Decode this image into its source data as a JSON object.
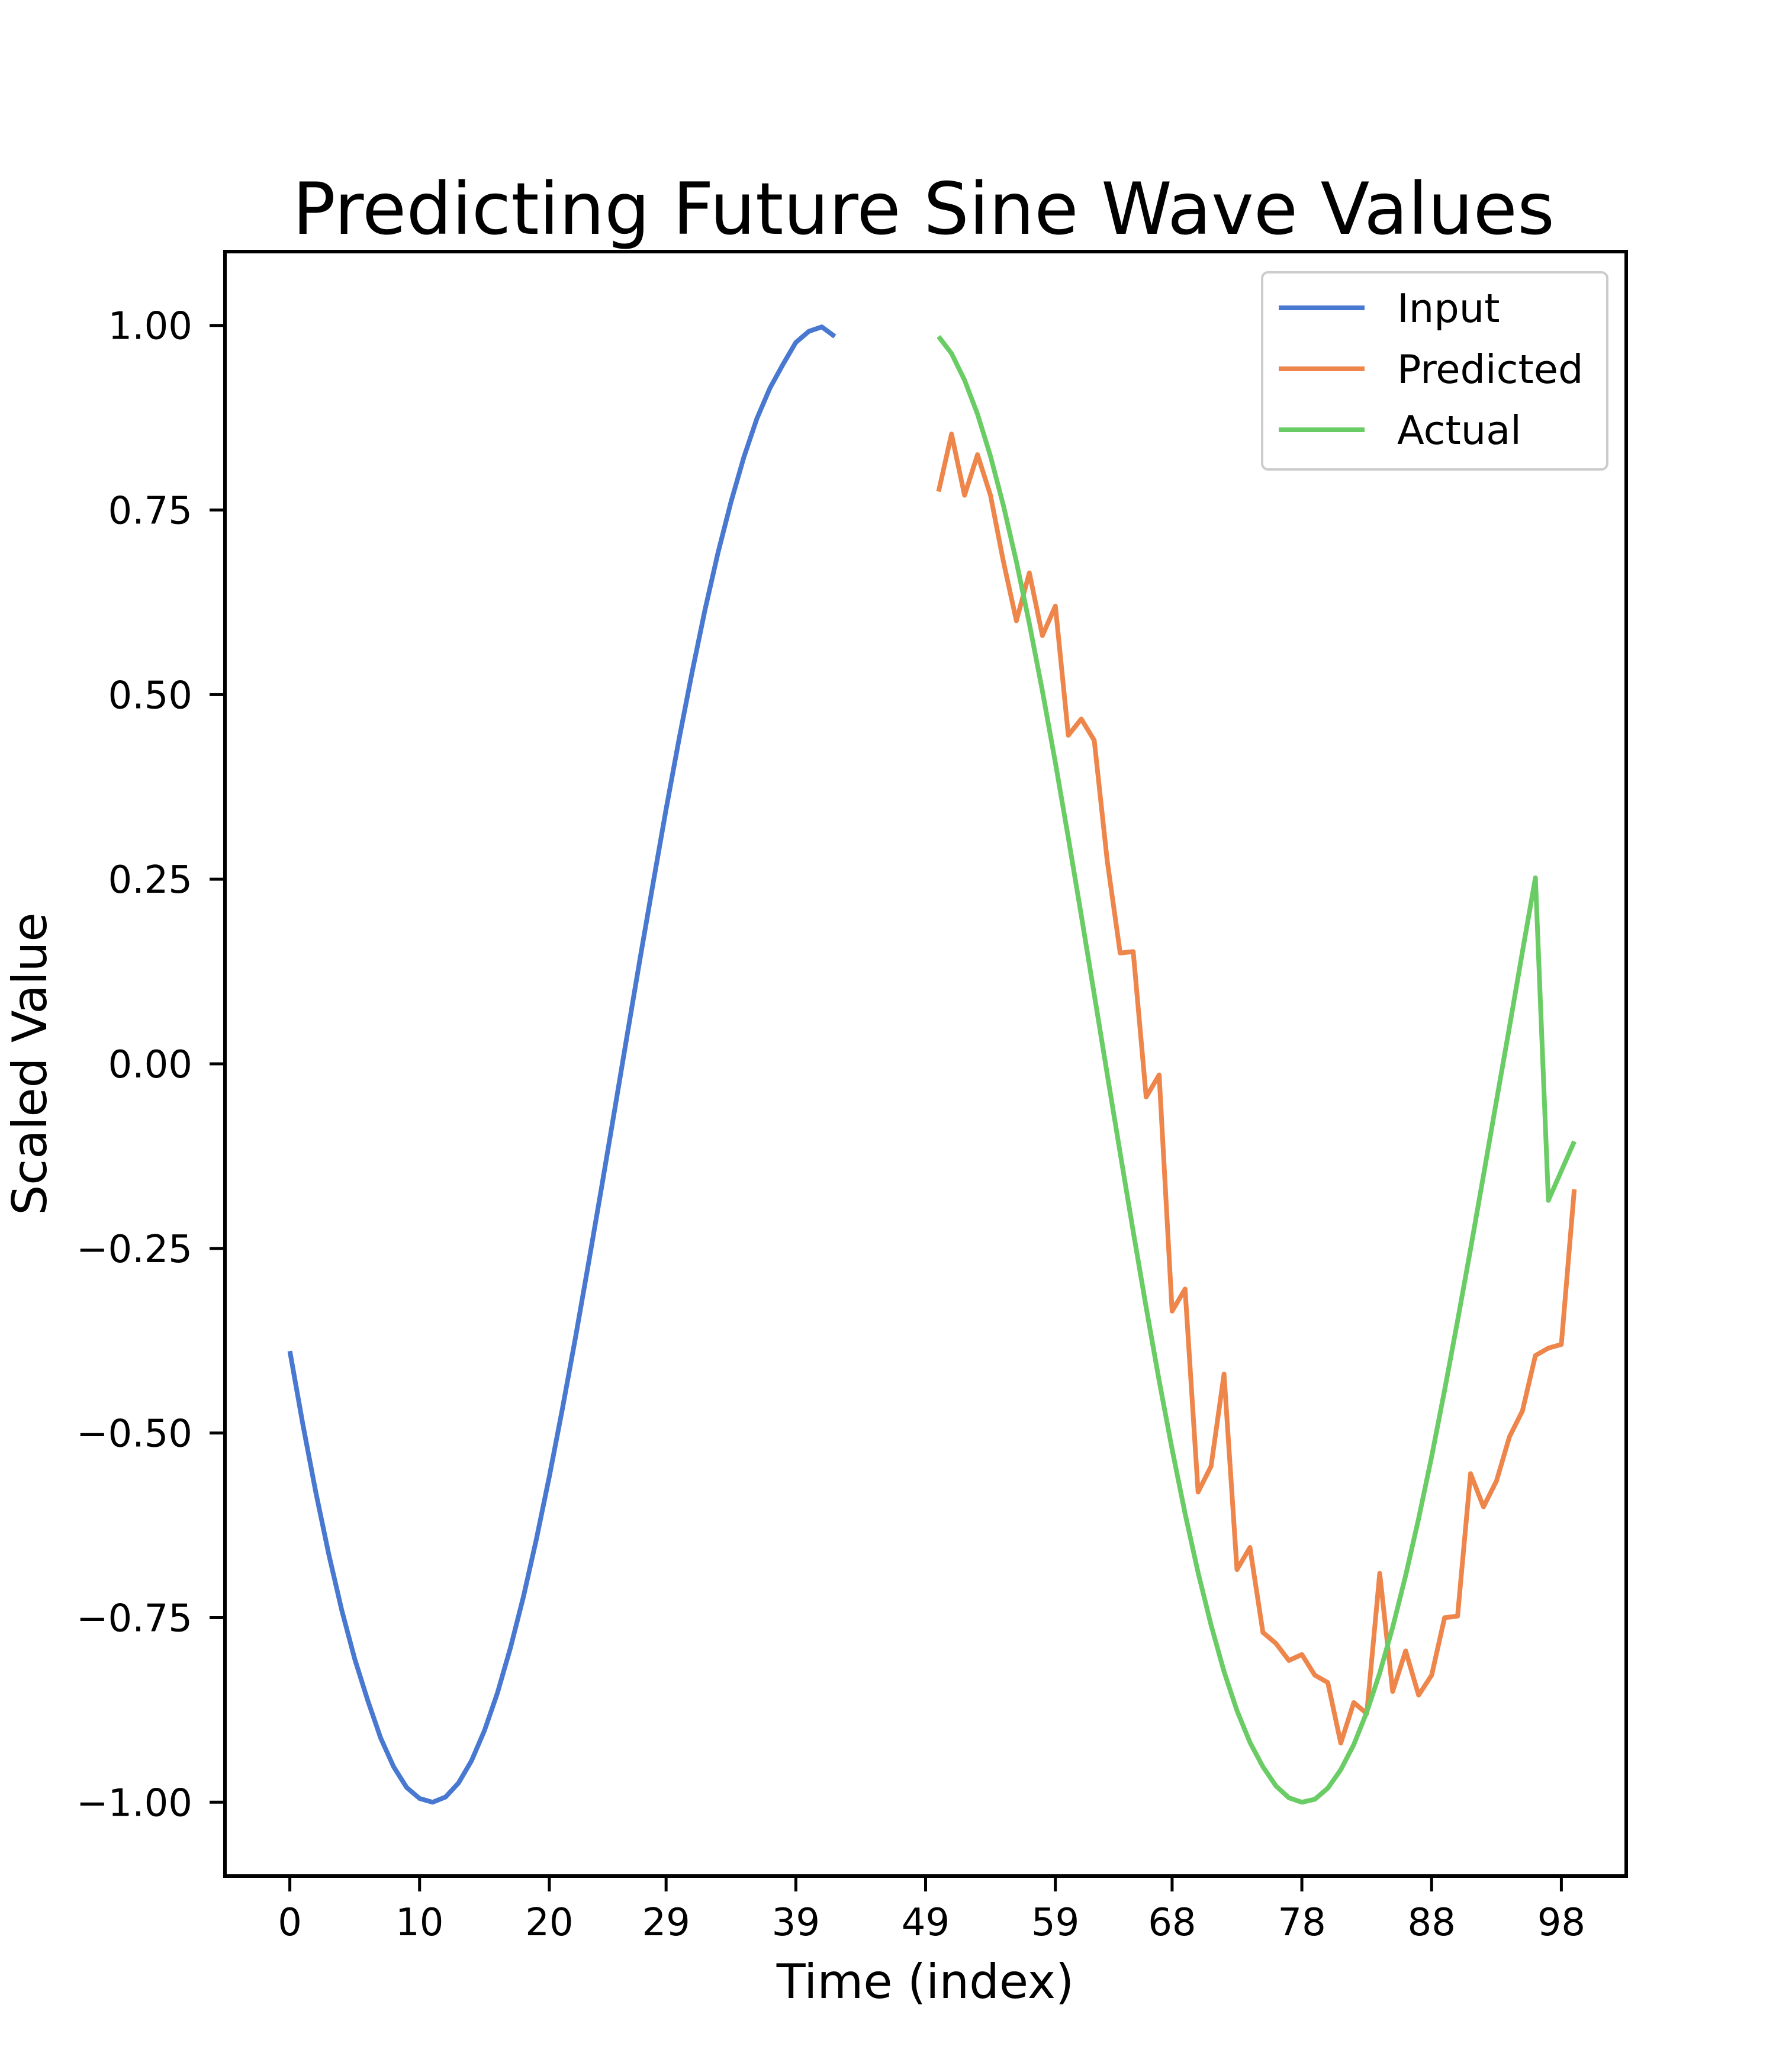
{
  "chart_data": {
    "type": "line",
    "title": "Predicting Future Sine Wave Values",
    "xlabel": "Time (index)",
    "ylabel": "Scaled Value",
    "xlim": [
      -5,
      103
    ],
    "ylim": [
      -1.1,
      1.1
    ],
    "xticks": [
      0,
      10,
      20,
      29,
      39,
      49,
      59,
      68,
      78,
      88,
      98
    ],
    "yticks": [
      -1.0,
      -0.75,
      -0.5,
      -0.25,
      0.0,
      0.25,
      0.5,
      0.75,
      1.0
    ],
    "ytick_labels": [
      "−1.00",
      "−0.75",
      "−0.50",
      "−0.25",
      "0.00",
      "0.25",
      "0.50",
      "0.75",
      "1.00"
    ],
    "grid": false,
    "legend_position": "top-right",
    "series": [
      {
        "name": "Input",
        "color": "#4878d0",
        "x_start": 0,
        "values": [
          -0.389,
          -0.488,
          -0.58,
          -0.664,
          -0.74,
          -0.806,
          -0.862,
          -0.913,
          -0.952,
          -0.98,
          -0.995,
          -1.0,
          -0.993,
          -0.974,
          -0.944,
          -0.903,
          -0.852,
          -0.791,
          -0.722,
          -0.644,
          -0.559,
          -0.468,
          -0.372,
          -0.272,
          -0.17,
          -0.066,
          0.039,
          0.143,
          0.245,
          0.345,
          0.44,
          0.53,
          0.615,
          0.692,
          0.761,
          0.822,
          0.874,
          0.915,
          0.947,
          0.977,
          0.992,
          0.998,
          0.985
        ]
      },
      {
        "name": "Predicted",
        "color": "#ee854a",
        "x_start": 50,
        "values": [
          0.775,
          0.853,
          0.77,
          0.825,
          0.77,
          0.68,
          0.6,
          0.665,
          0.58,
          0.62,
          0.445,
          0.467,
          0.438,
          0.275,
          0.15,
          0.152,
          -0.045,
          -0.015,
          -0.335,
          -0.305,
          -0.58,
          -0.545,
          -0.42,
          -0.685,
          -0.655,
          -0.77,
          -0.785,
          -0.808,
          -0.8,
          -0.828,
          -0.838,
          -0.92,
          -0.865,
          -0.88,
          -0.69,
          -0.85,
          -0.795,
          -0.855,
          -0.828,
          -0.75,
          -0.748,
          -0.555,
          -0.6,
          -0.565,
          -0.505,
          -0.47,
          -0.395,
          -0.385,
          -0.38,
          -0.17
        ]
      },
      {
        "name": "Actual",
        "color": "#6acc64",
        "x_start": 50,
        "values": [
          0.985,
          0.962,
          0.926,
          0.88,
          0.823,
          0.756,
          0.68,
          0.596,
          0.505,
          0.408,
          0.306,
          0.201,
          0.094,
          -0.014,
          -0.121,
          -0.227,
          -0.33,
          -0.429,
          -0.522,
          -0.609,
          -0.689,
          -0.76,
          -0.823,
          -0.876,
          -0.919,
          -0.952,
          -0.978,
          -0.994,
          -1.0,
          -0.996,
          -0.981,
          -0.956,
          -0.922,
          -0.878,
          -0.825,
          -0.763,
          -0.693,
          -0.616,
          -0.532,
          -0.442,
          -0.348,
          -0.251,
          -0.151,
          -0.05,
          0.05,
          0.152,
          0.252,
          -0.185,
          -0.145,
          -0.105
        ]
      }
    ]
  }
}
